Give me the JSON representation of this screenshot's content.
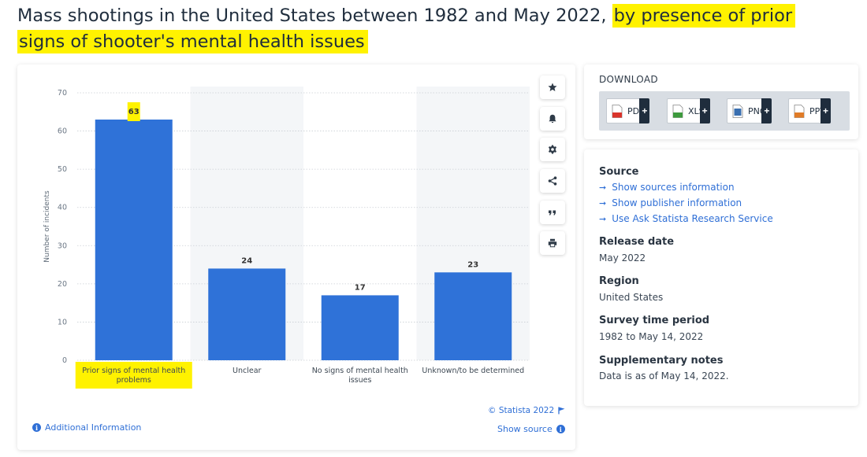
{
  "header": {
    "title_plain": "Mass shootings in the United States between 1982 and May 2022, ",
    "title_highlight_1": "by presence of prior",
    "title_highlight_2": "signs of shooter's mental health issues"
  },
  "chart_data": {
    "type": "bar",
    "categories": [
      "Prior signs of mental health problems",
      "Unclear",
      "No signs of mental health issues",
      "Unknown/to be determined"
    ],
    "category_label_lines": [
      [
        "Prior signs of mental health",
        "problems"
      ],
      [
        "Unclear"
      ],
      [
        "No signs of mental health",
        "issues"
      ],
      [
        "Unknown/to be determined"
      ]
    ],
    "values": [
      63,
      24,
      17,
      23
    ],
    "ylabel": "Number of incidents",
    "xlabel": "",
    "ylim": [
      0,
      70
    ],
    "yticks": [
      0,
      10,
      20,
      30,
      40,
      50,
      60,
      70
    ],
    "grid": true,
    "bar_color": "#2f72d8",
    "highlight_color": "#fff200",
    "highlighted_category_index": 0
  },
  "toolbar": {
    "icons": [
      "star-icon",
      "bell-icon",
      "gear-icon",
      "share-icon",
      "quote-icon",
      "print-icon"
    ]
  },
  "chart_footer": {
    "copyright": "© Statista 2022",
    "additional_info": "Additional Information",
    "show_source": "Show source"
  },
  "download": {
    "title": "DOWNLOAD",
    "buttons": [
      {
        "label": "PDF",
        "color": "#d9342b"
      },
      {
        "label": "XLS",
        "color": "#3d9a3d"
      },
      {
        "label": "PNG",
        "color": "#3a6fb0"
      },
      {
        "label": "PPT",
        "color": "#e07b27"
      }
    ]
  },
  "info": {
    "source_heading": "Source",
    "source_links": [
      "Show sources information",
      "Show publisher information",
      "Use Ask Statista Research Service"
    ],
    "release_heading": "Release date",
    "release_value": "May 2022",
    "region_heading": "Region",
    "region_value": "United States",
    "survey_heading": "Survey time period",
    "survey_value": "1982 to May 14, 2022",
    "notes_heading": "Supplementary notes",
    "notes_value": "Data is as of May 14, 2022."
  }
}
